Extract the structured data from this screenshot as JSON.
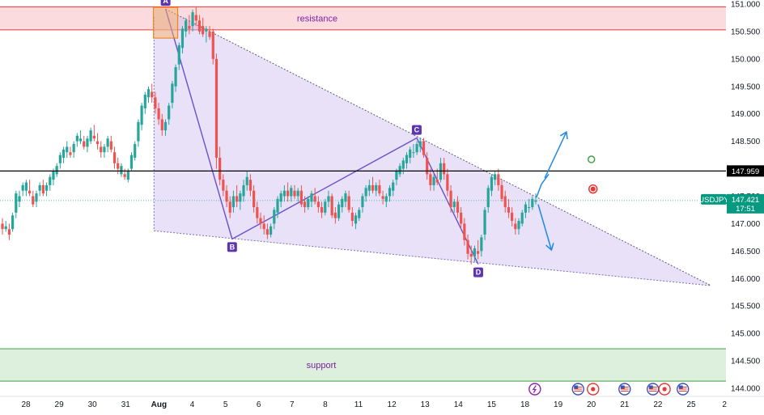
{
  "chart_data": {
    "type": "candlestick",
    "symbol": "USDJPY",
    "ylim": [
      144.0,
      151.0
    ],
    "y_ticks": [
      144.0,
      144.5,
      145.0,
      145.5,
      146.0,
      146.5,
      147.0,
      147.5,
      148.0,
      148.5,
      149.0,
      149.5,
      150.0,
      150.5,
      151.0
    ],
    "x_labels": [
      "28",
      "29",
      "30",
      "31",
      "Aug",
      "4",
      "5",
      "6",
      "7",
      "8",
      "11",
      "12",
      "13",
      "14",
      "15",
      "18",
      "19",
      "20",
      "21",
      "22",
      "25",
      "2"
    ],
    "x_label_day_index": [
      0,
      1,
      2,
      3,
      4,
      5,
      6,
      7,
      8,
      9,
      10,
      11,
      12,
      13,
      14,
      15,
      16,
      17,
      18,
      19,
      20,
      21
    ],
    "last_price": {
      "symbol_tag": "USDJPY",
      "value": "147.421",
      "countdown": "17:51",
      "price": 147.421
    },
    "horizontal_line": {
      "value": "147.959",
      "price": 147.959
    },
    "zones": {
      "resistance": {
        "label": "resistance",
        "from": 150.53,
        "to": 150.95
      },
      "support": {
        "label": "support",
        "from": 144.13,
        "to": 144.72
      }
    },
    "pattern_points": [
      {
        "label": "A",
        "day": 4.2,
        "price": 150.91
      },
      {
        "label": "B",
        "day": 6.2,
        "price": 146.72
      },
      {
        "label": "C",
        "day": 11.75,
        "price": 148.56
      },
      {
        "label": "D",
        "day": 13.6,
        "price": 146.26
      }
    ],
    "triangle": {
      "apex_day": 20.6,
      "apex_price": 145.87,
      "upper_start": {
        "day": 4.2,
        "price": 150.91
      },
      "lower_start": {
        "day": 3.85,
        "price": 146.87
      }
    },
    "projections": {
      "up": [
        {
          "day": 15.6,
          "price": 147.83
        },
        {
          "day": 16.25,
          "price": 148.67
        }
      ],
      "down": [
        {
          "day": 15.4,
          "price": 147.35
        },
        {
          "day": 15.8,
          "price": 146.52
        }
      ]
    },
    "markers": [
      {
        "color": "#43a047",
        "day": 17.0,
        "price": 148.17
      },
      {
        "color": "#e53935",
        "day": 17.05,
        "price": 147.63
      }
    ],
    "candles": [
      [
        147.0,
        147.1,
        146.8,
        146.9
      ],
      [
        146.9,
        147.05,
        146.85,
        146.95
      ],
      [
        146.9,
        147.0,
        146.7,
        146.8
      ],
      [
        146.9,
        147.2,
        146.85,
        147.15
      ],
      [
        147.2,
        147.6,
        147.1,
        147.55
      ],
      [
        147.4,
        147.6,
        147.3,
        147.5
      ],
      [
        147.6,
        147.75,
        147.5,
        147.7
      ],
      [
        147.6,
        147.8,
        147.5,
        147.75
      ],
      [
        147.6,
        147.8,
        147.5,
        147.55
      ],
      [
        147.5,
        147.6,
        147.3,
        147.35
      ],
      [
        147.4,
        147.6,
        147.3,
        147.55
      ],
      [
        147.6,
        147.75,
        147.5,
        147.7
      ],
      [
        147.7,
        147.8,
        147.5,
        147.55
      ],
      [
        147.6,
        147.75,
        147.5,
        147.7
      ],
      [
        147.7,
        147.9,
        147.6,
        147.85
      ],
      [
        147.8,
        148.0,
        147.7,
        147.95
      ],
      [
        147.9,
        148.1,
        147.85,
        148.05
      ],
      [
        148.1,
        148.3,
        148.0,
        148.25
      ],
      [
        148.2,
        148.4,
        148.1,
        148.35
      ],
      [
        148.3,
        148.5,
        148.2,
        148.4
      ],
      [
        148.3,
        148.4,
        148.2,
        148.25
      ],
      [
        148.3,
        148.5,
        148.2,
        148.45
      ],
      [
        148.5,
        148.65,
        148.4,
        148.6
      ],
      [
        148.5,
        148.7,
        148.45,
        148.55
      ],
      [
        148.5,
        148.6,
        148.35,
        148.4
      ],
      [
        148.4,
        148.6,
        148.3,
        148.55
      ],
      [
        148.5,
        148.75,
        148.45,
        148.7
      ],
      [
        148.6,
        148.8,
        148.5,
        148.55
      ],
      [
        148.5,
        148.65,
        148.35,
        148.45
      ],
      [
        148.4,
        148.5,
        148.2,
        148.3
      ],
      [
        148.3,
        148.45,
        148.2,
        148.4
      ],
      [
        148.4,
        148.6,
        148.3,
        148.55
      ],
      [
        148.5,
        148.6,
        148.3,
        148.35
      ],
      [
        148.3,
        148.4,
        148.0,
        148.1
      ],
      [
        148.1,
        148.2,
        147.9,
        148.0
      ],
      [
        147.9,
        148.1,
        147.85,
        148.05
      ],
      [
        147.9,
        148.0,
        147.8,
        147.85
      ],
      [
        147.8,
        148.0,
        147.75,
        147.95
      ],
      [
        148.0,
        148.3,
        147.95,
        148.25
      ],
      [
        148.2,
        148.5,
        148.15,
        148.45
      ],
      [
        148.5,
        148.9,
        148.4,
        148.85
      ],
      [
        148.8,
        149.2,
        148.7,
        149.15
      ],
      [
        149.1,
        149.4,
        149.0,
        149.35
      ],
      [
        149.3,
        149.5,
        149.2,
        149.45
      ],
      [
        149.4,
        149.55,
        149.2,
        149.3
      ],
      [
        149.3,
        149.4,
        149.0,
        149.1
      ],
      [
        149.1,
        149.2,
        148.8,
        148.9
      ],
      [
        148.9,
        149.0,
        148.6,
        148.7
      ],
      [
        148.7,
        148.9,
        148.6,
        148.85
      ],
      [
        148.9,
        149.2,
        148.8,
        149.15
      ],
      [
        149.2,
        149.6,
        149.1,
        149.55
      ],
      [
        149.5,
        149.9,
        149.4,
        149.85
      ],
      [
        149.9,
        150.3,
        149.8,
        150.25
      ],
      [
        150.2,
        150.6,
        150.1,
        150.55
      ],
      [
        150.5,
        150.75,
        150.4,
        150.7
      ],
      [
        150.6,
        150.8,
        150.45,
        150.55
      ],
      [
        150.6,
        150.9,
        150.5,
        150.85
      ],
      [
        150.8,
        150.95,
        150.6,
        150.7
      ],
      [
        150.7,
        150.8,
        150.45,
        150.5
      ],
      [
        150.6,
        150.75,
        150.4,
        150.45
      ],
      [
        150.5,
        150.6,
        150.3,
        150.55
      ],
      [
        150.5,
        150.6,
        150.35,
        150.4
      ],
      [
        150.5,
        150.55,
        149.9,
        150.0
      ],
      [
        150.0,
        150.1,
        148.0,
        148.2
      ],
      [
        148.2,
        148.4,
        147.7,
        147.8
      ],
      [
        147.8,
        147.9,
        147.5,
        147.6
      ],
      [
        147.6,
        147.7,
        147.3,
        147.4
      ],
      [
        147.4,
        147.5,
        147.1,
        147.2
      ],
      [
        147.3,
        147.6,
        147.2,
        147.5
      ],
      [
        147.5,
        147.7,
        147.3,
        147.4
      ],
      [
        147.4,
        147.6,
        147.25,
        147.55
      ],
      [
        147.5,
        147.8,
        147.4,
        147.7
      ],
      [
        147.7,
        147.95,
        147.6,
        147.85
      ],
      [
        147.8,
        147.9,
        147.5,
        147.6
      ],
      [
        147.6,
        147.7,
        147.2,
        147.3
      ],
      [
        147.3,
        147.4,
        147.0,
        147.1
      ],
      [
        147.1,
        147.2,
        146.9,
        147.0
      ],
      [
        147.0,
        147.15,
        146.8,
        146.9
      ],
      [
        146.9,
        147.0,
        146.72,
        146.8
      ],
      [
        146.8,
        147.0,
        146.75,
        146.95
      ],
      [
        147.0,
        147.3,
        146.9,
        147.25
      ],
      [
        147.2,
        147.5,
        147.1,
        147.45
      ],
      [
        147.4,
        147.6,
        147.3,
        147.55
      ],
      [
        147.5,
        147.7,
        147.4,
        147.6
      ],
      [
        147.6,
        147.75,
        147.4,
        147.5
      ],
      [
        147.5,
        147.7,
        147.4,
        147.65
      ],
      [
        147.6,
        147.7,
        147.45,
        147.5
      ],
      [
        147.5,
        147.65,
        147.4,
        147.6
      ],
      [
        147.6,
        147.7,
        147.3,
        147.35
      ],
      [
        147.4,
        147.5,
        147.2,
        147.3
      ],
      [
        147.3,
        147.5,
        147.25,
        147.45
      ],
      [
        147.4,
        147.6,
        147.3,
        147.55
      ],
      [
        147.5,
        147.65,
        147.35,
        147.4
      ],
      [
        147.4,
        147.5,
        147.2,
        147.3
      ],
      [
        147.3,
        147.4,
        147.1,
        147.2
      ],
      [
        147.2,
        147.45,
        147.15,
        147.4
      ],
      [
        147.4,
        147.6,
        147.3,
        147.5
      ],
      [
        147.5,
        147.55,
        147.1,
        147.15
      ],
      [
        147.2,
        147.3,
        147.0,
        147.1
      ],
      [
        147.1,
        147.4,
        147.05,
        147.35
      ],
      [
        147.3,
        147.5,
        147.2,
        147.45
      ],
      [
        147.4,
        147.6,
        147.3,
        147.55
      ],
      [
        147.5,
        147.6,
        147.2,
        147.25
      ],
      [
        147.2,
        147.3,
        146.95,
        147.05
      ],
      [
        147.0,
        147.2,
        146.9,
        147.15
      ],
      [
        147.1,
        147.3,
        147.05,
        147.25
      ],
      [
        147.3,
        147.55,
        147.2,
        147.5
      ],
      [
        147.5,
        147.7,
        147.4,
        147.65
      ],
      [
        147.6,
        147.8,
        147.5,
        147.7
      ],
      [
        147.7,
        147.85,
        147.55,
        147.6
      ],
      [
        147.6,
        147.75,
        147.5,
        147.7
      ],
      [
        147.7,
        147.8,
        147.5,
        147.55
      ],
      [
        147.5,
        147.6,
        147.35,
        147.45
      ],
      [
        147.4,
        147.55,
        147.3,
        147.5
      ],
      [
        147.5,
        147.7,
        147.4,
        147.65
      ],
      [
        147.6,
        147.8,
        147.5,
        147.75
      ],
      [
        147.8,
        148.0,
        147.7,
        147.95
      ],
      [
        147.9,
        148.1,
        147.85,
        148.05
      ],
      [
        148.0,
        148.2,
        147.9,
        148.15
      ],
      [
        148.1,
        148.3,
        148.0,
        148.25
      ],
      [
        148.2,
        148.4,
        148.1,
        148.35
      ],
      [
        148.3,
        148.45,
        148.2,
        148.3
      ],
      [
        148.3,
        148.5,
        148.25,
        148.45
      ],
      [
        148.4,
        148.56,
        148.3,
        148.5
      ],
      [
        148.5,
        148.56,
        148.2,
        148.25
      ],
      [
        148.2,
        148.3,
        147.8,
        147.9
      ],
      [
        147.9,
        148.0,
        147.6,
        147.7
      ],
      [
        147.7,
        147.9,
        147.6,
        147.85
      ],
      [
        147.8,
        148.0,
        147.7,
        147.75
      ],
      [
        147.8,
        148.2,
        147.75,
        148.1
      ],
      [
        148.1,
        148.2,
        147.8,
        147.9
      ],
      [
        147.9,
        148.0,
        147.5,
        147.6
      ],
      [
        147.6,
        147.7,
        147.2,
        147.3
      ],
      [
        147.3,
        147.45,
        147.2,
        147.4
      ],
      [
        147.4,
        147.5,
        147.1,
        147.2
      ],
      [
        147.2,
        147.3,
        146.9,
        147.0
      ],
      [
        147.0,
        147.1,
        146.6,
        146.7
      ],
      [
        146.7,
        146.8,
        146.35,
        146.45
      ],
      [
        146.45,
        146.6,
        146.26,
        146.4
      ],
      [
        146.4,
        146.6,
        146.3,
        146.55
      ],
      [
        146.5,
        146.7,
        146.35,
        146.45
      ],
      [
        146.5,
        146.8,
        146.4,
        146.75
      ],
      [
        146.8,
        147.3,
        146.7,
        147.25
      ],
      [
        147.3,
        147.7,
        147.2,
        147.65
      ],
      [
        147.6,
        147.9,
        147.5,
        147.85
      ],
      [
        147.8,
        147.95,
        147.7,
        147.9
      ],
      [
        147.9,
        148.0,
        147.6,
        147.7
      ],
      [
        147.7,
        147.8,
        147.4,
        147.45
      ],
      [
        147.5,
        147.6,
        147.2,
        147.3
      ],
      [
        147.3,
        147.45,
        147.1,
        147.2
      ],
      [
        147.2,
        147.3,
        146.95,
        147.05
      ],
      [
        147.0,
        147.1,
        146.8,
        146.9
      ],
      [
        146.9,
        147.1,
        146.8,
        147.05
      ],
      [
        147.0,
        147.25,
        146.95,
        147.2
      ],
      [
        147.2,
        147.4,
        147.1,
        147.35
      ],
      [
        147.3,
        147.45,
        147.2,
        147.3
      ],
      [
        147.3,
        147.5,
        147.25,
        147.45
      ],
      [
        147.4,
        147.55,
        147.35,
        147.42
      ]
    ]
  },
  "event_icons": [
    {
      "name": "lightning-event-icon",
      "day": 15.3,
      "color": "#8e24aa"
    },
    {
      "name": "us-flag-event-icon",
      "day": 16.6,
      "color": "#3f51b5"
    },
    {
      "name": "record-event-icon",
      "day": 17.05,
      "color": "#e53935"
    },
    {
      "name": "us-flag-event-icon",
      "day": 18.0,
      "color": "#3f51b5"
    },
    {
      "name": "us-flag-event-icon",
      "day": 18.85,
      "color": "#3f51b5"
    },
    {
      "name": "record-event-icon",
      "day": 19.2,
      "color": "#e53935"
    },
    {
      "name": "us-flag-event-icon",
      "day": 19.75,
      "color": "#3f51b5"
    }
  ]
}
